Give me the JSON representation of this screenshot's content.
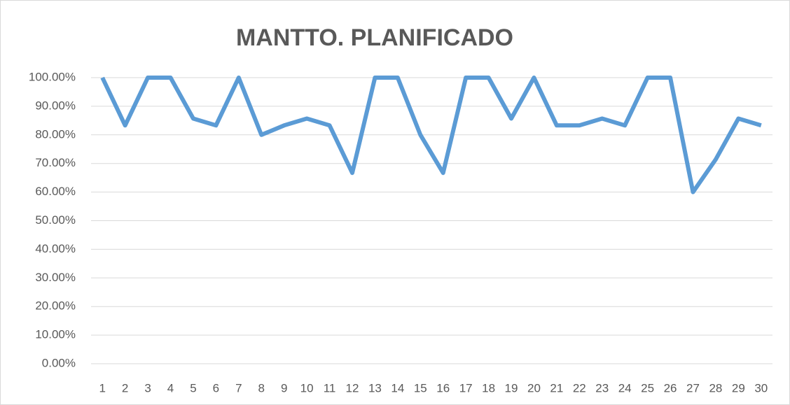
{
  "chart_data": {
    "type": "line",
    "title": "MANTTO. PLANIFICADO",
    "categories": [
      "1",
      "2",
      "3",
      "4",
      "5",
      "6",
      "7",
      "8",
      "9",
      "10",
      "11",
      "12",
      "13",
      "14",
      "15",
      "16",
      "17",
      "18",
      "19",
      "20",
      "21",
      "22",
      "23",
      "24",
      "25",
      "26",
      "27",
      "28",
      "29",
      "30"
    ],
    "values": [
      100,
      83.3,
      100,
      100,
      85.7,
      83.3,
      100,
      80,
      83.3,
      85.7,
      83.3,
      66.7,
      100,
      100,
      80,
      66.7,
      100,
      100,
      85.7,
      100,
      83.3,
      83.3,
      85.7,
      83.3,
      100,
      100,
      60,
      71.4,
      85.7,
      83.3
    ],
    "color": "#5b9bd5",
    "ylim": [
      0,
      100
    ],
    "yticks": [
      {
        "value": 0,
        "label": "0.00%"
      },
      {
        "value": 10,
        "label": "10.00%"
      },
      {
        "value": 20,
        "label": "20.00%"
      },
      {
        "value": 30,
        "label": "30.00%"
      },
      {
        "value": 40,
        "label": "40.00%"
      },
      {
        "value": 50,
        "label": "50.00%"
      },
      {
        "value": 60,
        "label": "60.00%"
      },
      {
        "value": 70,
        "label": "70.00%"
      },
      {
        "value": 80,
        "label": "80.00%"
      },
      {
        "value": 90,
        "label": "90.00%"
      },
      {
        "value": 100,
        "label": "100.00%"
      }
    ],
    "grid": true
  }
}
